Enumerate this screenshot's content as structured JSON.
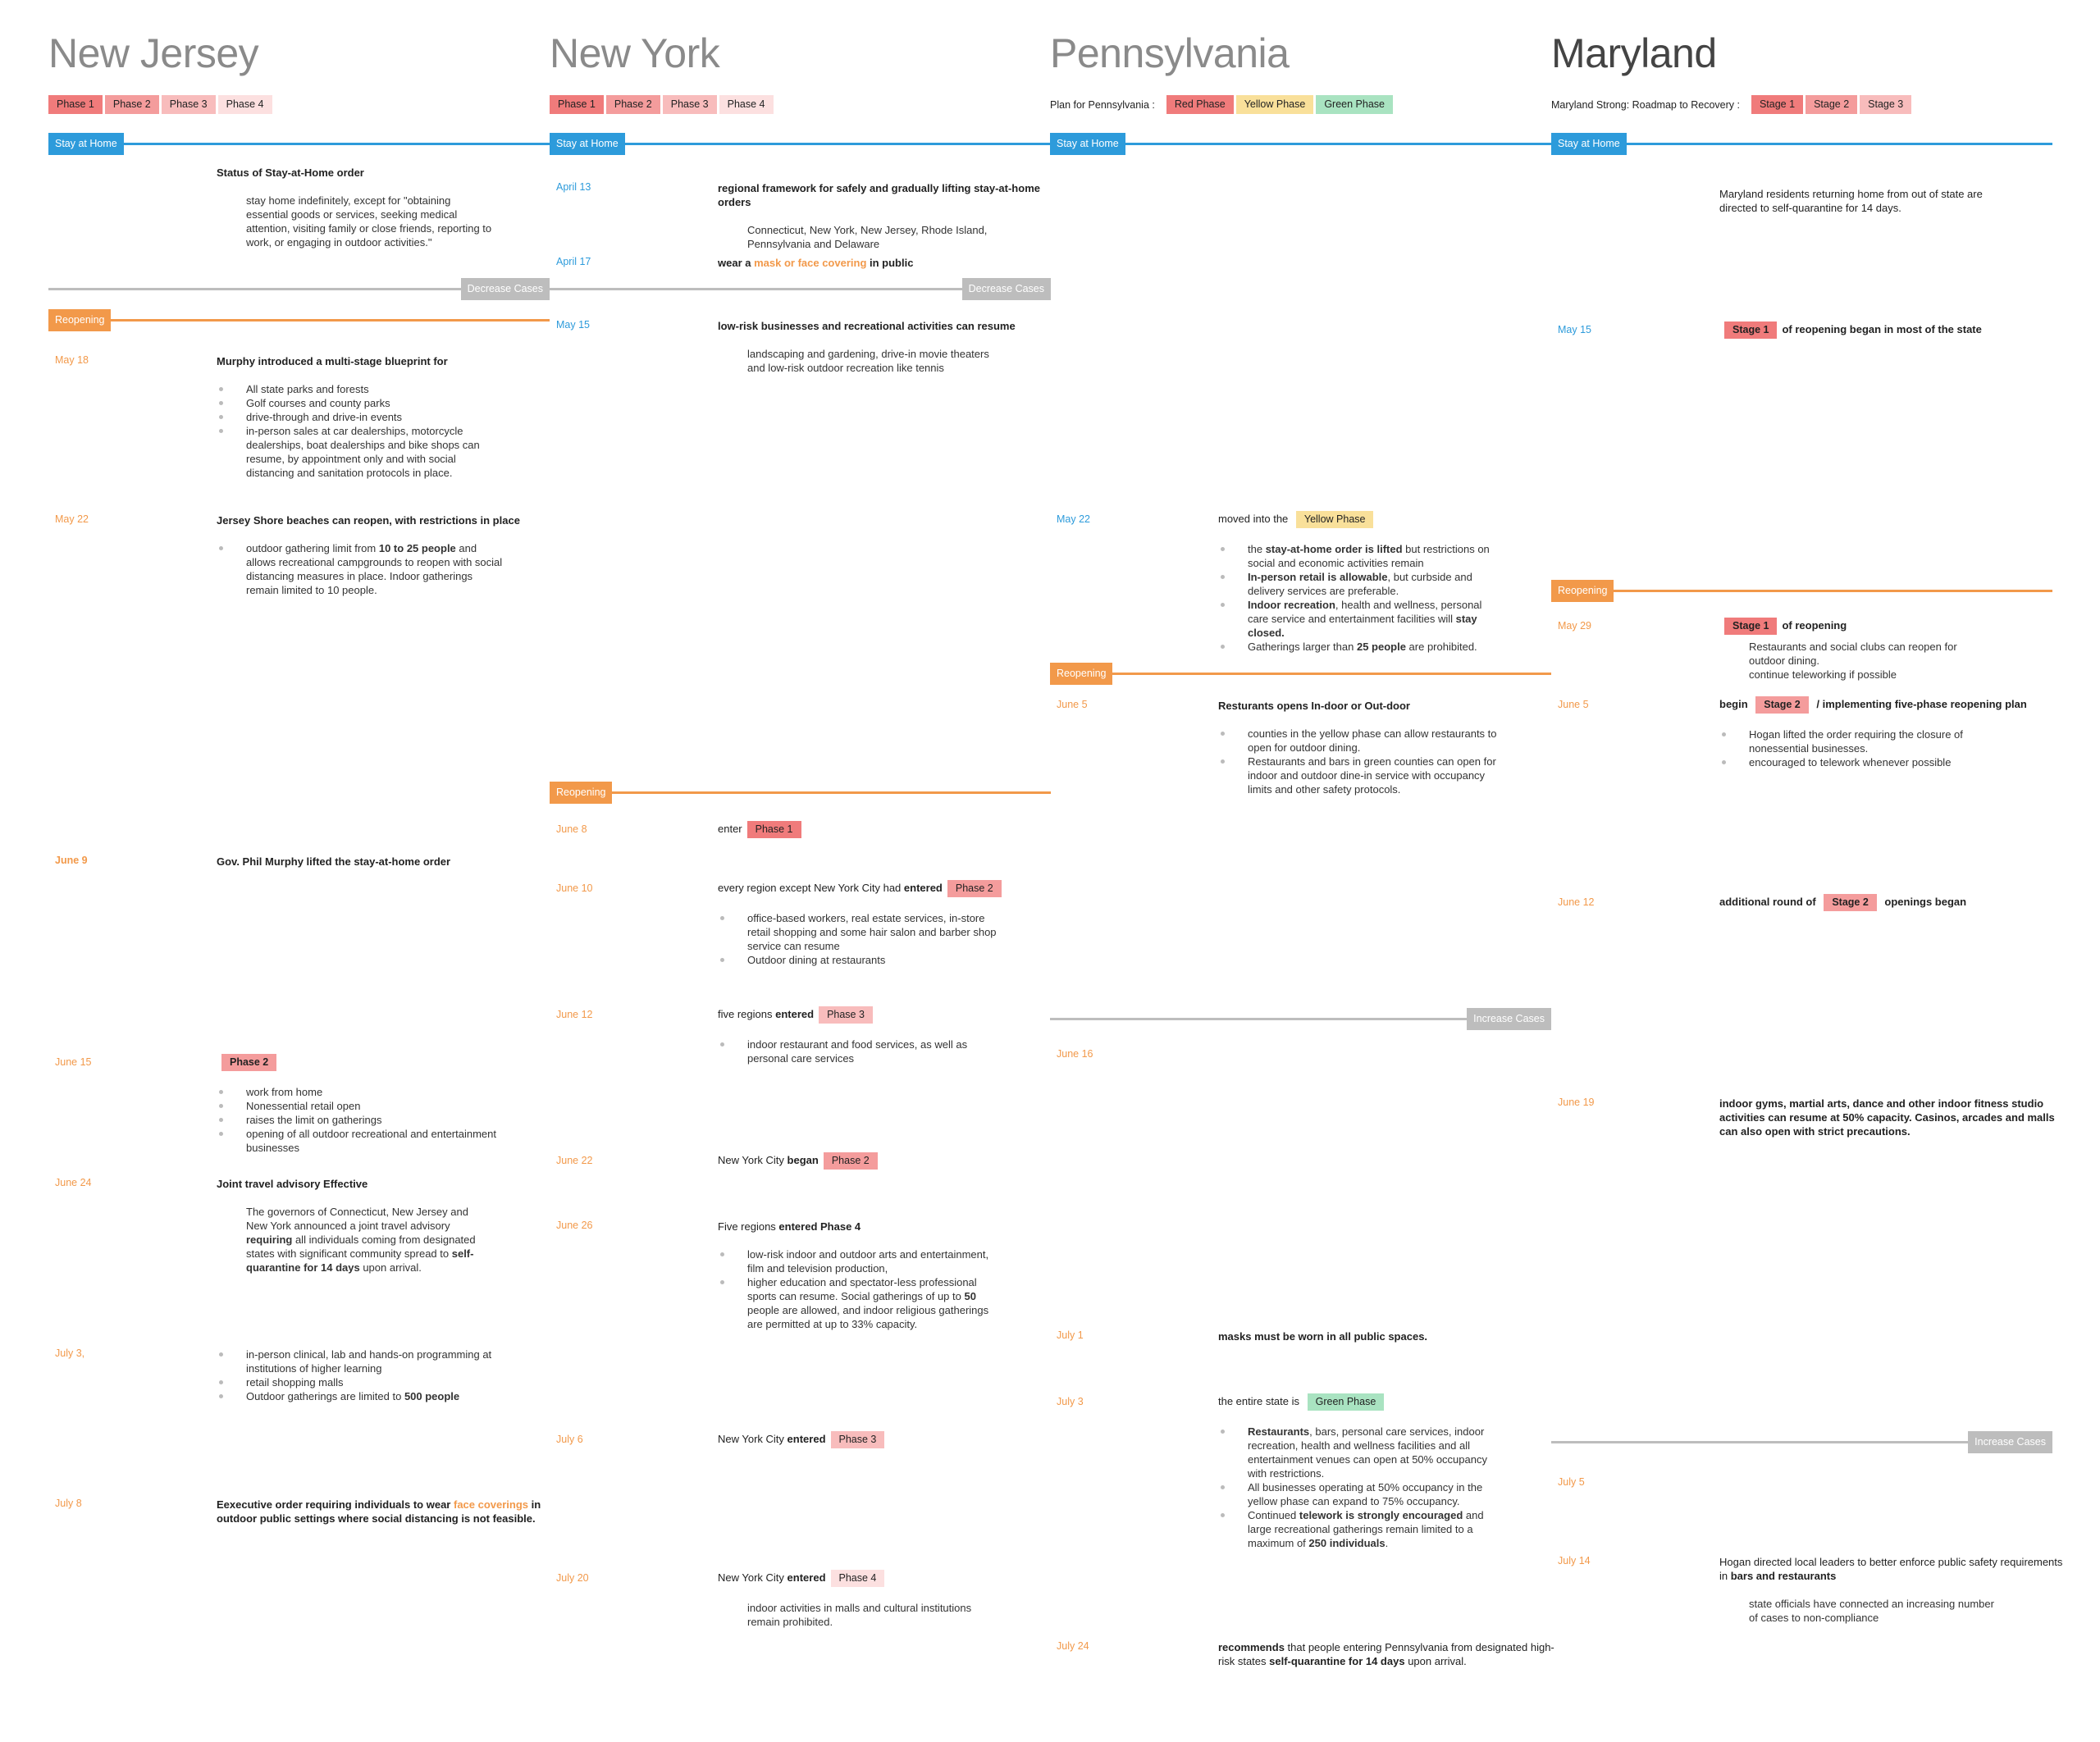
{
  "colors": {
    "stay": "#2d9bdb",
    "reopen": "#f2994a",
    "cases": "#bdbdbd",
    "date_blue": "#2d9bdb",
    "date_orange": "#f2994a"
  },
  "badge_colors": {
    "Phase 1": "#f07b7b",
    "Phase 2": "#f49c9c",
    "Phase 3": "#f8bcbc",
    "Phase 4": "#fce0e0",
    "Red Phase": "#f07b7b",
    "Yellow Phase": "#f9e09a",
    "Green Phase": "#a9e3c1",
    "Stage 1": "#f07b7b",
    "Stage 2": "#f49c9c",
    "Stage 3": "#f8bcbc"
  },
  "columns": [
    {
      "title": "New Jersey",
      "legend_label": "",
      "legend": [
        "Phase 1",
        "Phase 2",
        "Phase 3",
        "Phase 4"
      ],
      "bars": [
        {
          "type": "stay",
          "label": "Stay at Home"
        },
        {
          "type": "decrease",
          "label": "Decrease Cases"
        },
        {
          "type": "reopen",
          "label": "Reopening"
        }
      ],
      "events": [
        {
          "date": "",
          "heading": [
            "Status of Stay-at-Home order"
          ],
          "body": [
            [
              "stay home indefinitely, except for \"obtaining essential goods or services, seeking medical attention, visiting family or close friends, reporting to work, or engaging in outdoor activities.\""
            ]
          ]
        },
        {
          "date": "May 18",
          "date_color": "orange",
          "heading": [
            "Murphy introduced a multi-stage blueprint for"
          ],
          "bullets": [
            [
              "All state parks and forests"
            ],
            [
              "Golf courses and county parks"
            ],
            [
              "drive-through and drive-in events"
            ],
            [
              "in-person sales at car dealerships, motorcycle dealerships, boat dealerships and bike shops can resume, by appointment only and with social distancing and sanitation protocols in place."
            ]
          ]
        },
        {
          "date": "May 22",
          "date_color": "orange",
          "heading": [
            "Jersey Shore beaches can reopen, with restrictions in place"
          ],
          "bullets": [
            [
              "outdoor gathering limit from ",
              {
                "b": "10 to 25 people"
              },
              " and allows recreational campgrounds to reopen with social distancing measures in place. Indoor gatherings remain limited to 10 people."
            ]
          ]
        },
        {
          "date": "June 9",
          "date_color": "orange",
          "date_bold": true,
          "heading": [
            {
              "b": "Gov. Phil Murphy lifted the stay-at-home order"
            }
          ]
        },
        {
          "date": "June 15",
          "date_color": "orange",
          "heading": [
            {
              "badge": "Phase 2"
            }
          ],
          "bullets": [
            [
              "work from home"
            ],
            [
              "Nonessential retail open"
            ],
            [
              "raises the limit on gatherings"
            ],
            [
              "opening of all outdoor recreational and entertainment businesses"
            ]
          ]
        },
        {
          "date": "June 24",
          "date_color": "orange",
          "heading": [
            "Joint travel advisory Effective"
          ],
          "body": [
            [
              "The governors of Connecticut, New Jersey and New York announced a joint travel advisory ",
              {
                "b": "requiring"
              },
              " all individuals coming from designated states with significant community spread to ",
              {
                "b": "self-quarantine for 14 days"
              },
              " upon arrival."
            ]
          ]
        },
        {
          "date": "July 3,",
          "date_color": "orange",
          "bullets": [
            [
              "in-person clinical, lab and hands-on programming at institutions of higher learning"
            ],
            [
              "retail shopping malls"
            ],
            [
              "Outdoor gatherings are limited to ",
              {
                "b": "500 people"
              }
            ]
          ]
        },
        {
          "date": "July 8",
          "date_color": "orange",
          "heading": [
            "Eexecutive order requiring individuals to wear ",
            {
              "o": "face coverings"
            },
            " in outdoor public settings where social distancing is not feasible."
          ]
        }
      ]
    },
    {
      "title": "New York",
      "legend_label": "",
      "legend": [
        "Phase 1",
        "Phase 2",
        "Phase 3",
        "Phase 4"
      ],
      "bars": [
        {
          "type": "stay",
          "label": "Stay at Home"
        },
        {
          "type": "decrease",
          "label": "Decrease Cases"
        },
        {
          "type": "reopen",
          "label": "Reopening"
        }
      ],
      "events": [
        {
          "date": "April 13",
          "date_color": "blue",
          "heading": [
            "regional framework for safely and gradually lifting stay-at-home orders"
          ],
          "body": [
            [
              "Connecticut, New York, New Jersey, Rhode Island, Pennsylvania and Delaware"
            ]
          ]
        },
        {
          "date": "April 17",
          "date_color": "blue",
          "heading": [
            "wear a ",
            {
              "o": "mask or face covering"
            },
            " in public"
          ]
        },
        {
          "date": "May 15",
          "date_color": "blue",
          "heading": [
            "low-risk businesses and recreational activities can resume"
          ],
          "body": [
            [
              "landscaping and gardening, drive-in movie theaters and low-risk outdoor recreation like tennis"
            ]
          ]
        },
        {
          "date": "June 8",
          "date_color": "orange",
          "plain": true,
          "heading": [
            "enter",
            {
              "badge": "Phase 1"
            }
          ]
        },
        {
          "date": "June 10",
          "date_color": "orange",
          "plain": true,
          "heading": [
            "every region except New York City had ",
            {
              "b": "entered"
            },
            {
              "badge": "Phase 2"
            }
          ],
          "bullets": [
            [
              "office-based workers, real estate services, in-store retail shopping and some hair salon and barber shop service can resume"
            ],
            [
              "Outdoor dining at restaurants"
            ]
          ]
        },
        {
          "date": "June 12",
          "date_color": "orange",
          "plain": true,
          "heading": [
            "five regions ",
            {
              "b": "entered"
            },
            {
              "badge": "Phase 3"
            }
          ],
          "bullets": [
            [
              "indoor restaurant and food services, as well as personal care services"
            ]
          ]
        },
        {
          "date": "June 22",
          "date_color": "orange",
          "plain": true,
          "heading": [
            "New York City ",
            {
              "b": "began"
            },
            {
              "badge": "Phase 2"
            }
          ]
        },
        {
          "date": "June 26",
          "date_color": "orange",
          "plain": true,
          "heading": [
            "Five regions ",
            {
              "b": "entered Phase 4"
            }
          ],
          "bullets": [
            [
              "low-risk indoor and outdoor arts and entertainment, film and television production,"
            ],
            [
              "higher education and spectator-less professional sports can resume. Social gatherings of up to ",
              {
                "b": "50"
              },
              " people are allowed, and indoor religious gatherings are permitted at up to 33% capacity."
            ]
          ]
        },
        {
          "date": "July 6",
          "date_color": "orange",
          "plain": true,
          "heading": [
            "New York City ",
            {
              "b": "entered"
            },
            {
              "badge": "Phase 3"
            }
          ]
        },
        {
          "date": "July 20",
          "date_color": "orange",
          "plain": true,
          "heading": [
            "New York City ",
            {
              "b": "entered"
            },
            {
              "badge": "Phase 4"
            }
          ],
          "body": [
            [
              "indoor activities in malls and cultural institutions remain prohibited."
            ]
          ]
        }
      ]
    },
    {
      "title": "Pennsylvania",
      "legend_label": "Plan for Pennsylvania :",
      "legend": [
        "Red Phase",
        "Yellow Phase",
        "Green Phase"
      ],
      "bars": [
        {
          "type": "stay",
          "label": "Stay at Home"
        },
        {
          "type": "reopen",
          "label": "Reopening"
        },
        {
          "type": "increase",
          "label": "Increase Cases"
        }
      ],
      "events": [
        {
          "date": "May 22",
          "date_color": "blue",
          "plain": true,
          "heading": [
            "moved into the ",
            {
              "badge": "Yellow Phase"
            }
          ],
          "bullets": [
            [
              "the ",
              {
                "b": "stay-at-home order is lifted"
              },
              " but restrictions on social and economic activities remain"
            ],
            [
              {
                "b": "In-person retail is allowable"
              },
              ", but curbside and delivery services are preferable."
            ],
            [
              {
                "b": "Indoor recreation"
              },
              ", health and wellness, personal care service and entertainment facilities will ",
              {
                "b": "stay closed."
              }
            ],
            [
              "Gatherings larger than ",
              {
                "b": "25 people"
              },
              " are prohibited."
            ]
          ]
        },
        {
          "date": "June 5",
          "date_color": "orange",
          "heading": [
            "Resturants opens In-door or Out-door"
          ],
          "bullets": [
            [
              "counties in the yellow phase can allow restaurants to open for outdoor dining."
            ],
            [
              "Restaurants and bars in green counties can open for indoor and outdoor dine-in service with occupancy limits and other safety protocols."
            ]
          ]
        },
        {
          "date": "June 16",
          "date_color": "orange"
        },
        {
          "date": "July 1",
          "date_color": "orange",
          "heading": [
            {
              "b": "masks must be worn in all public spaces."
            }
          ]
        },
        {
          "date": "July 3",
          "date_color": "orange",
          "plain": true,
          "heading": [
            "the entire state is ",
            {
              "badge": "Green Phase"
            }
          ],
          "bullets": [
            [
              {
                "b": "Restaurants"
              },
              ", bars, personal care services, indoor recreation, health and wellness facilities and all entertainment venues can open at 50% occupancy with restrictions."
            ],
            [
              "All businesses operating at 50% occupancy in the yellow phase can expand to 75% occupancy."
            ],
            [
              "Continued ",
              {
                "b": "telework is strongly encouraged"
              },
              " and large recreational gatherings remain limited to a maximum of ",
              {
                "b": "250 individuals"
              },
              "."
            ]
          ]
        },
        {
          "date": "July 24",
          "date_color": "orange",
          "plain": true,
          "heading": [
            {
              "b": "recommends"
            },
            " that people entering Pennsylvania from designated high-risk states ",
            {
              "b": "self-quarantine for 14 days"
            },
            " upon arrival."
          ]
        }
      ]
    },
    {
      "title": "Maryland",
      "legend_label": "Maryland Strong: Roadmap to Recovery :",
      "legend": [
        "Stage 1",
        "Stage 2",
        "Stage 3"
      ],
      "bars": [
        {
          "type": "stay",
          "label": "Stay at Home"
        },
        {
          "type": "reopen",
          "label": "Reopening"
        },
        {
          "type": "increase",
          "label": "Increase Cases"
        }
      ],
      "events": [
        {
          "date": "",
          "plain": true,
          "heading": [
            "Maryland residents returning home from out of state are directed to self-quarantine for 14 days."
          ]
        },
        {
          "date": "May 15",
          "date_color": "blue",
          "heading": [
            {
              "badge": "Stage 1"
            },
            "of reopening began in most of the state"
          ]
        },
        {
          "date": "May 29",
          "date_color": "orange",
          "heading": [
            {
              "badge": "Stage 1"
            },
            "of reopening"
          ],
          "body": [
            [
              "Restaurants and social clubs can reopen for outdoor dining."
            ],
            [
              "continue teleworking if possible"
            ]
          ]
        },
        {
          "date": "June 5",
          "date_color": "orange",
          "heading": [
            "begin ",
            {
              "badge": "Stage 2"
            },
            " / implementing five-phase reopening plan"
          ],
          "bullets": [
            [
              "Hogan lifted the order requiring the closure of nonessential businesses."
            ],
            [
              "encouraged to telework whenever possible"
            ]
          ]
        },
        {
          "date": "June 12",
          "date_color": "orange",
          "heading": [
            "additional round of ",
            {
              "badge": "Stage 2"
            },
            " openings began"
          ]
        },
        {
          "date": "June 19",
          "date_color": "orange",
          "heading": [
            {
              "b": "indoor gyms, martial arts, dance and other indoor fitness studio activities can resume at 50% capacity. Casinos, arcades and malls can also open with strict precautions."
            }
          ]
        },
        {
          "date": "July 5",
          "date_color": "orange"
        },
        {
          "date": "July 14",
          "date_color": "orange",
          "plain": true,
          "heading": [
            "Hogan directed local leaders to better enforce public safety requirements in ",
            {
              "b": "bars and restaurants"
            }
          ],
          "body": [
            [
              "state officials have connected an increasing number of cases to non-compliance"
            ]
          ]
        }
      ]
    }
  ]
}
